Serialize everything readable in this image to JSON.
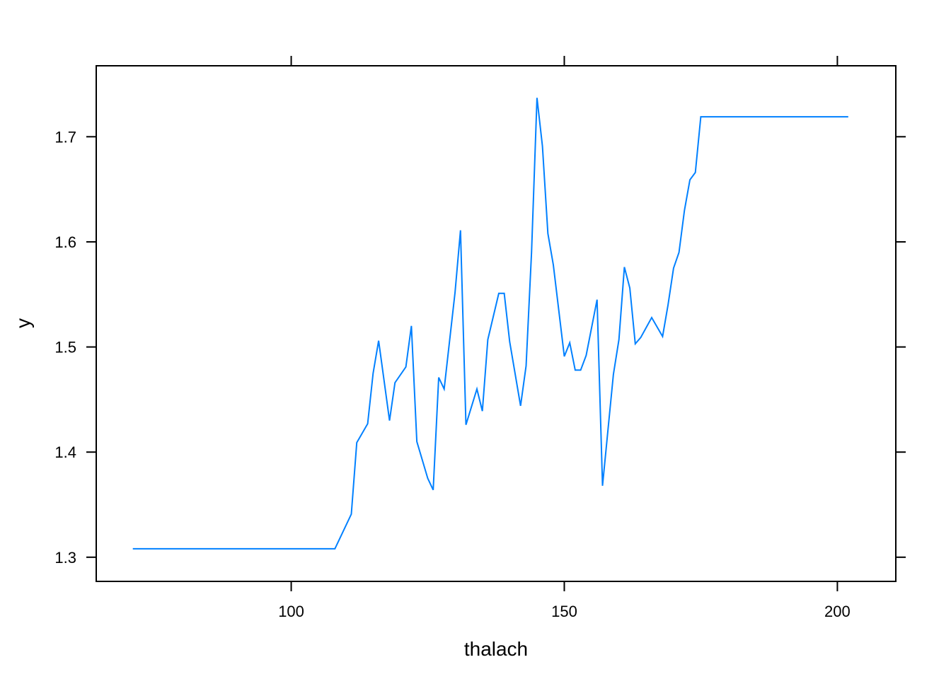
{
  "chart_data": {
    "type": "line",
    "title": "",
    "xlabel": "thalach",
    "ylabel": "y",
    "xlim": [
      64.3,
      210.7
    ],
    "ylim": [
      1.277,
      1.7675
    ],
    "xticks": [
      100,
      150,
      200
    ],
    "xtick_labels": [
      "100",
      "150",
      "200"
    ],
    "yticks": [
      1.3,
      1.4,
      1.5,
      1.6,
      1.7
    ],
    "ytick_labels": [
      "1.3",
      "1.4",
      "1.5",
      "1.6",
      "1.7"
    ],
    "grid": false,
    "line_color": "#0080ff",
    "x": [
      71,
      108,
      111,
      112,
      114,
      115,
      116,
      118,
      119,
      121,
      122,
      123,
      125,
      126,
      127,
      128,
      130,
      131,
      132,
      134,
      135,
      136,
      138,
      139,
      140,
      142,
      143,
      144,
      145,
      146,
      147,
      148,
      150,
      151,
      152,
      153,
      154,
      156,
      157,
      159,
      160,
      161,
      162,
      163,
      164,
      166,
      168,
      169,
      170,
      171,
      172,
      173,
      174,
      175,
      176,
      177,
      178,
      182,
      187,
      190,
      195,
      202
    ],
    "y": [
      1.308,
      1.308,
      1.341,
      1.409,
      1.427,
      1.475,
      1.506,
      1.43,
      1.466,
      1.481,
      1.52,
      1.41,
      1.375,
      1.364,
      1.471,
      1.46,
      1.552,
      1.611,
      1.426,
      1.46,
      1.439,
      1.507,
      1.551,
      1.551,
      1.505,
      1.444,
      1.482,
      1.59,
      1.737,
      1.691,
      1.608,
      1.578,
      1.491,
      1.504,
      1.478,
      1.478,
      1.492,
      1.545,
      1.368,
      1.474,
      1.507,
      1.576,
      1.556,
      1.503,
      1.509,
      1.528,
      1.51,
      1.54,
      1.575,
      1.59,
      1.63,
      1.659,
      1.666,
      1.719,
      1.719,
      1.719,
      1.719,
      1.719,
      1.719,
      1.719,
      1.719,
      1.719
    ]
  }
}
